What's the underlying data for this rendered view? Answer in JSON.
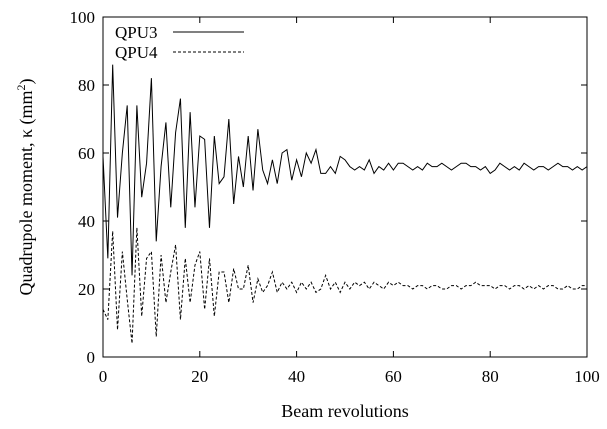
{
  "chart_data": {
    "type": "line",
    "title": "",
    "xlabel": "Beam revolutions",
    "ylabel_main": "Quadrupole moment, κ (mm",
    "ylabel_sup": "2",
    "ylabel_close": ")",
    "xlim": [
      0,
      100
    ],
    "ylim": [
      0,
      100
    ],
    "x_ticks": [
      0,
      20,
      40,
      60,
      80,
      100
    ],
    "y_ticks": [
      0,
      20,
      40,
      60,
      80,
      100
    ],
    "x_tick_labels": [
      "0",
      "20",
      "40",
      "60",
      "80",
      "100"
    ],
    "y_tick_labels": [
      "0",
      "20",
      "40",
      "60",
      "80",
      "100"
    ],
    "grid": false,
    "legend_position": "top-left",
    "x": [
      0,
      1,
      2,
      3,
      4,
      5,
      6,
      7,
      8,
      9,
      10,
      11,
      12,
      13,
      14,
      15,
      16,
      17,
      18,
      19,
      20,
      21,
      22,
      23,
      24,
      25,
      26,
      27,
      28,
      29,
      30,
      31,
      32,
      33,
      34,
      35,
      36,
      37,
      38,
      39,
      40,
      41,
      42,
      43,
      44,
      45,
      46,
      47,
      48,
      49,
      50,
      51,
      52,
      53,
      54,
      55,
      56,
      57,
      58,
      59,
      60,
      61,
      62,
      63,
      64,
      65,
      66,
      67,
      68,
      69,
      70,
      71,
      72,
      73,
      74,
      75,
      76,
      77,
      78,
      79,
      80,
      81,
      82,
      83,
      84,
      85,
      86,
      87,
      88,
      89,
      90,
      91,
      92,
      93,
      94,
      95,
      96,
      97,
      98,
      99,
      100
    ],
    "series": [
      {
        "name": "QPU3",
        "style": "solid",
        "color": "#000000",
        "values": [
          59,
          29,
          86,
          41,
          60,
          74,
          24,
          74,
          47,
          57,
          82,
          34,
          56,
          69,
          44,
          66,
          76,
          38,
          72,
          44,
          65,
          64,
          38,
          65,
          51,
          53,
          70,
          45,
          59,
          50,
          65,
          49,
          67,
          55,
          51,
          58,
          51,
          60,
          61,
          52,
          58,
          53,
          60,
          57,
          61,
          54,
          54,
          56,
          54,
          59,
          58,
          56,
          55,
          56,
          55,
          58,
          54,
          56,
          55,
          57,
          55,
          57,
          57,
          56,
          55,
          56,
          55,
          57,
          56,
          56,
          57,
          56,
          55,
          56,
          57,
          57,
          56,
          56,
          55,
          56,
          54,
          55,
          57,
          56,
          55,
          56,
          55,
          57,
          56,
          55,
          56,
          56,
          55,
          56,
          57,
          56,
          56,
          55,
          56,
          55,
          56
        ]
      },
      {
        "name": "QPU4",
        "style": "dashed",
        "color": "#000000",
        "values": [
          14,
          11,
          37,
          8,
          31,
          17,
          4,
          38,
          12,
          29,
          31,
          6,
          30,
          16,
          25,
          33,
          11,
          29,
          16,
          27,
          31,
          14,
          29,
          12,
          25,
          25,
          16,
          26,
          20,
          20,
          27,
          16,
          23,
          19,
          21,
          25,
          19,
          22,
          20,
          22,
          19,
          22,
          20,
          22,
          19,
          20,
          24,
          20,
          22,
          19,
          22,
          20,
          22,
          21,
          22,
          20,
          22,
          21,
          20,
          22,
          21,
          22,
          21,
          21,
          20,
          21,
          21,
          20,
          21,
          21,
          20,
          20,
          21,
          21,
          20,
          21,
          21,
          22,
          21,
          21,
          21,
          20,
          21,
          21,
          20,
          21,
          21,
          20,
          21,
          20,
          21,
          20,
          21,
          21,
          20,
          20,
          21,
          20,
          20,
          21,
          21
        ]
      }
    ]
  }
}
